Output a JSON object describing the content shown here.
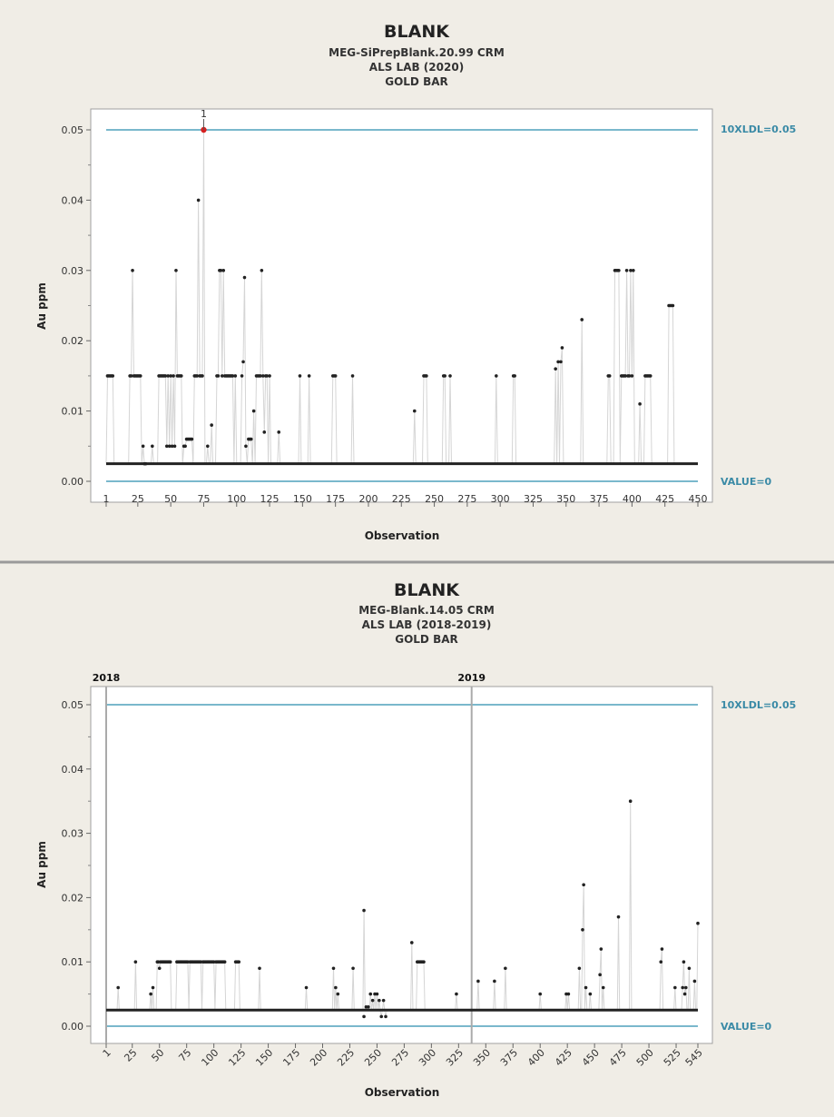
{
  "colors": {
    "reference_line": "#7ab8cc",
    "reference_text": "#3a8aa6",
    "point": "#222222",
    "highlight": "#d62020",
    "connector": "#d5d5d5"
  },
  "chart_data": [
    {
      "type": "scatter",
      "title": "BLANK",
      "subtitle_lines": [
        "MEG-SiPrepBlank.20.99 CRM",
        "ALS LAB (2020)",
        "GOLD BAR"
      ],
      "xlabel": "Observation",
      "ylabel": "Au ppm",
      "xlim": [
        1,
        450
      ],
      "ylim": [
        0,
        0.05
      ],
      "x_ticks": [
        1,
        25,
        50,
        75,
        100,
        125,
        150,
        175,
        200,
        225,
        250,
        275,
        300,
        325,
        350,
        375,
        400,
        425,
        450
      ],
      "y_ticks": [
        "0.00",
        "0.01",
        "0.02",
        "0.03",
        "0.04",
        "0.05"
      ],
      "reference_lines": [
        {
          "label": "10XLDL=0.05",
          "value": 0.05
        },
        {
          "label": "VALUE=0",
          "value": 0
        }
      ],
      "highlight": {
        "label": "1",
        "x": 75,
        "y": 0.05
      },
      "baseline_value": 0.0025,
      "points": [
        [
          2,
          0.015
        ],
        [
          3,
          0.015
        ],
        [
          4,
          0.015
        ],
        [
          5,
          0.015
        ],
        [
          6,
          0.015
        ],
        [
          19,
          0.015
        ],
        [
          20,
          0.015
        ],
        [
          21,
          0.03
        ],
        [
          22,
          0.015
        ],
        [
          23,
          0.015
        ],
        [
          24,
          0.015
        ],
        [
          25,
          0.015
        ],
        [
          26,
          0.015
        ],
        [
          27,
          0.015
        ],
        [
          29,
          0.005
        ],
        [
          30,
          0.0025
        ],
        [
          31,
          0.0025
        ],
        [
          36,
          0.005
        ],
        [
          41,
          0.015
        ],
        [
          42,
          0.015
        ],
        [
          43,
          0.015
        ],
        [
          44,
          0.015
        ],
        [
          45,
          0.015
        ],
        [
          46,
          0.015
        ],
        [
          47,
          0.005
        ],
        [
          48,
          0.015
        ],
        [
          49,
          0.005
        ],
        [
          50,
          0.015
        ],
        [
          51,
          0.005
        ],
        [
          52,
          0.015
        ],
        [
          53,
          0.005
        ],
        [
          54,
          0.03
        ],
        [
          55,
          0.015
        ],
        [
          56,
          0.015
        ],
        [
          57,
          0.015
        ],
        [
          58,
          0.015
        ],
        [
          60,
          0.005
        ],
        [
          61,
          0.005
        ],
        [
          62,
          0.006
        ],
        [
          63,
          0.006
        ],
        [
          64,
          0.006
        ],
        [
          65,
          0.006
        ],
        [
          66,
          0.006
        ],
        [
          68,
          0.015
        ],
        [
          69,
          0.015
        ],
        [
          70,
          0.015
        ],
        [
          71,
          0.04
        ],
        [
          72,
          0.015
        ],
        [
          73,
          0.015
        ],
        [
          74,
          0.015
        ],
        [
          75,
          0.05
        ],
        [
          78,
          0.005
        ],
        [
          81,
          0.008
        ],
        [
          85,
          0.015
        ],
        [
          86,
          0.015
        ],
        [
          87,
          0.03
        ],
        [
          88,
          0.03
        ],
        [
          89,
          0.015
        ],
        [
          90,
          0.03
        ],
        [
          91,
          0.015
        ],
        [
          92,
          0.015
        ],
        [
          93,
          0.015
        ],
        [
          94,
          0.015
        ],
        [
          95,
          0.015
        ],
        [
          96,
          0.015
        ],
        [
          97,
          0.015
        ],
        [
          99,
          0.015
        ],
        [
          104,
          0.015
        ],
        [
          105,
          0.017
        ],
        [
          106,
          0.029
        ],
        [
          107,
          0.005
        ],
        [
          109,
          0.006
        ],
        [
          110,
          0.006
        ],
        [
          111,
          0.006
        ],
        [
          113,
          0.01
        ],
        [
          115,
          0.015
        ],
        [
          116,
          0.015
        ],
        [
          117,
          0.015
        ],
        [
          118,
          0.015
        ],
        [
          119,
          0.03
        ],
        [
          120,
          0.015
        ],
        [
          121,
          0.007
        ],
        [
          122,
          0.015
        ],
        [
          123,
          0.015
        ],
        [
          125,
          0.015
        ],
        [
          132,
          0.007
        ],
        [
          148,
          0.015
        ],
        [
          155,
          0.015
        ],
        [
          173,
          0.015
        ],
        [
          174,
          0.015
        ],
        [
          175,
          0.015
        ],
        [
          188,
          0.015
        ],
        [
          235,
          0.01
        ],
        [
          242,
          0.015
        ],
        [
          243,
          0.015
        ],
        [
          244,
          0.015
        ],
        [
          257,
          0.015
        ],
        [
          258,
          0.015
        ],
        [
          262,
          0.015
        ],
        [
          297,
          0.015
        ],
        [
          310,
          0.015
        ],
        [
          311,
          0.015
        ],
        [
          342,
          0.016
        ],
        [
          344,
          0.017
        ],
        [
          346,
          0.017
        ],
        [
          347,
          0.019
        ],
        [
          362,
          0.023
        ],
        [
          382,
          0.015
        ],
        [
          383,
          0.015
        ],
        [
          387,
          0.03
        ],
        [
          388,
          0.03
        ],
        [
          389,
          0.03
        ],
        [
          390,
          0.03
        ],
        [
          392,
          0.015
        ],
        [
          393,
          0.015
        ],
        [
          394,
          0.015
        ],
        [
          395,
          0.015
        ],
        [
          396,
          0.03
        ],
        [
          397,
          0.015
        ],
        [
          398,
          0.015
        ],
        [
          399,
          0.03
        ],
        [
          400,
          0.015
        ],
        [
          401,
          0.03
        ],
        [
          406,
          0.011
        ],
        [
          410,
          0.015
        ],
        [
          411,
          0.015
        ],
        [
          412,
          0.015
        ],
        [
          413,
          0.015
        ],
        [
          414,
          0.015
        ],
        [
          428,
          0.025
        ],
        [
          429,
          0.025
        ],
        [
          430,
          0.025
        ],
        [
          431,
          0.025
        ]
      ]
    },
    {
      "type": "scatter",
      "title": "BLANK",
      "subtitle_lines": [
        "MEG-Blank.14.05 CRM",
        "ALS LAB (2018-2019)",
        "GOLD BAR"
      ],
      "xlabel": "Observation",
      "ylabel": "Au ppm",
      "xlim": [
        1,
        545
      ],
      "ylim": [
        0,
        0.05
      ],
      "x_ticks": [
        1,
        25,
        50,
        75,
        100,
        125,
        150,
        175,
        200,
        225,
        250,
        275,
        300,
        325,
        350,
        375,
        400,
        425,
        450,
        475,
        500,
        525,
        545
      ],
      "y_ticks": [
        "0.00",
        "0.01",
        "0.02",
        "0.03",
        "0.04",
        "0.05"
      ],
      "reference_lines": [
        {
          "label": "10XLDL=0.05",
          "value": 0.05
        },
        {
          "label": "VALUE=0",
          "value": 0
        }
      ],
      "year_markers": [
        {
          "label": "2018",
          "x": 1
        },
        {
          "label": "2019",
          "x": 337
        }
      ],
      "baseline_value": 0.0025,
      "points": [
        [
          12,
          0.006
        ],
        [
          28,
          0.01
        ],
        [
          42,
          0.005
        ],
        [
          44,
          0.006
        ],
        [
          48,
          0.01
        ],
        [
          49,
          0.01
        ],
        [
          50,
          0.009
        ],
        [
          51,
          0.01
        ],
        [
          52,
          0.01
        ],
        [
          53,
          0.01
        ],
        [
          54,
          0.01
        ],
        [
          55,
          0.01
        ],
        [
          56,
          0.01
        ],
        [
          57,
          0.01
        ],
        [
          58,
          0.01
        ],
        [
          59,
          0.01
        ],
        [
          60,
          0.01
        ],
        [
          66,
          0.01
        ],
        [
          67,
          0.01
        ],
        [
          68,
          0.01
        ],
        [
          69,
          0.01
        ],
        [
          70,
          0.01
        ],
        [
          71,
          0.01
        ],
        [
          72,
          0.01
        ],
        [
          73,
          0.01
        ],
        [
          74,
          0.01
        ],
        [
          75,
          0.01
        ],
        [
          76,
          0.01
        ],
        [
          78,
          0.01
        ],
        [
          79,
          0.01
        ],
        [
          80,
          0.01
        ],
        [
          81,
          0.01
        ],
        [
          82,
          0.01
        ],
        [
          83,
          0.01
        ],
        [
          84,
          0.01
        ],
        [
          85,
          0.01
        ],
        [
          86,
          0.01
        ],
        [
          87,
          0.01
        ],
        [
          88,
          0.01
        ],
        [
          90,
          0.01
        ],
        [
          91,
          0.01
        ],
        [
          92,
          0.01
        ],
        [
          93,
          0.01
        ],
        [
          94,
          0.01
        ],
        [
          95,
          0.01
        ],
        [
          96,
          0.01
        ],
        [
          97,
          0.01
        ],
        [
          98,
          0.01
        ],
        [
          99,
          0.01
        ],
        [
          100,
          0.01
        ],
        [
          102,
          0.01
        ],
        [
          103,
          0.01
        ],
        [
          104,
          0.01
        ],
        [
          105,
          0.01
        ],
        [
          106,
          0.01
        ],
        [
          107,
          0.01
        ],
        [
          108,
          0.01
        ],
        [
          109,
          0.01
        ],
        [
          110,
          0.01
        ],
        [
          120,
          0.01
        ],
        [
          121,
          0.01
        ],
        [
          122,
          0.01
        ],
        [
          123,
          0.01
        ],
        [
          142,
          0.009
        ],
        [
          185,
          0.006
        ],
        [
          210,
          0.009
        ],
        [
          212,
          0.006
        ],
        [
          214,
          0.005
        ],
        [
          228,
          0.009
        ],
        [
          238,
          0.018
        ],
        [
          238,
          0.0015
        ],
        [
          240,
          0.003
        ],
        [
          242,
          0.003
        ],
        [
          244,
          0.005
        ],
        [
          246,
          0.004
        ],
        [
          248,
          0.005
        ],
        [
          250,
          0.005
        ],
        [
          252,
          0.004
        ],
        [
          254,
          0.0015
        ],
        [
          256,
          0.004
        ],
        [
          258,
          0.0015
        ],
        [
          282,
          0.013
        ],
        [
          287,
          0.01
        ],
        [
          288,
          0.01
        ],
        [
          289,
          0.01
        ],
        [
          290,
          0.01
        ],
        [
          291,
          0.01
        ],
        [
          292,
          0.01
        ],
        [
          293,
          0.01
        ],
        [
          323,
          0.005
        ],
        [
          343,
          0.007
        ],
        [
          358,
          0.007
        ],
        [
          368,
          0.009
        ],
        [
          400,
          0.005
        ],
        [
          424,
          0.005
        ],
        [
          426,
          0.005
        ],
        [
          436,
          0.009
        ],
        [
          439,
          0.015
        ],
        [
          440,
          0.022
        ],
        [
          442,
          0.006
        ],
        [
          446,
          0.005
        ],
        [
          455,
          0.008
        ],
        [
          456,
          0.012
        ],
        [
          458,
          0.006
        ],
        [
          472,
          0.017
        ],
        [
          483,
          0.035
        ],
        [
          511,
          0.01
        ],
        [
          512,
          0.012
        ],
        [
          524,
          0.006
        ],
        [
          531,
          0.006
        ],
        [
          532,
          0.01
        ],
        [
          533,
          0.005
        ],
        [
          534,
          0.006
        ],
        [
          537,
          0.009
        ],
        [
          542,
          0.007
        ],
        [
          545,
          0.016
        ]
      ]
    }
  ]
}
